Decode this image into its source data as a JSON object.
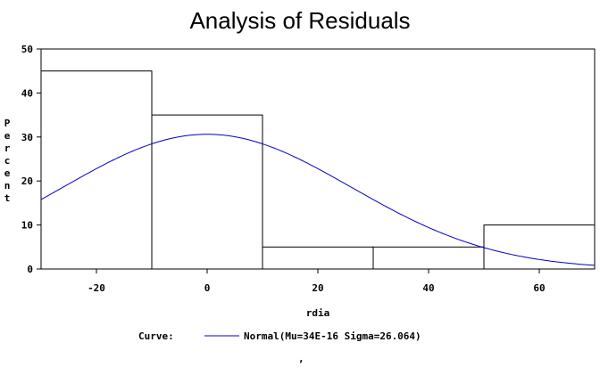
{
  "chart_data": {
    "type": "bar",
    "title": "Analysis of Residuals",
    "xlabel": "rdia",
    "ylabel": "Percent",
    "xlim": [
      -30,
      70
    ],
    "ylim": [
      0,
      50
    ],
    "x_ticks": [
      -20,
      0,
      20,
      40,
      60
    ],
    "y_ticks": [
      0,
      10,
      20,
      30,
      40,
      50
    ],
    "bins": [
      {
        "start": -30,
        "end": -10,
        "value": 45
      },
      {
        "start": -10,
        "end": 10,
        "value": 35
      },
      {
        "start": 10,
        "end": 30,
        "value": 5
      },
      {
        "start": 30,
        "end": 50,
        "value": 5
      },
      {
        "start": 50,
        "end": 70,
        "value": 10
      }
    ],
    "curve": {
      "type": "normal",
      "mu": 0,
      "sigma": 26.064,
      "bin_width": 20,
      "color": "#0000cc"
    },
    "legend": {
      "label": "Curve:",
      "entry": "Normal(Mu=34E-16 Sigma=26.064)",
      "placement": "bottom"
    },
    "footnote": ","
  }
}
